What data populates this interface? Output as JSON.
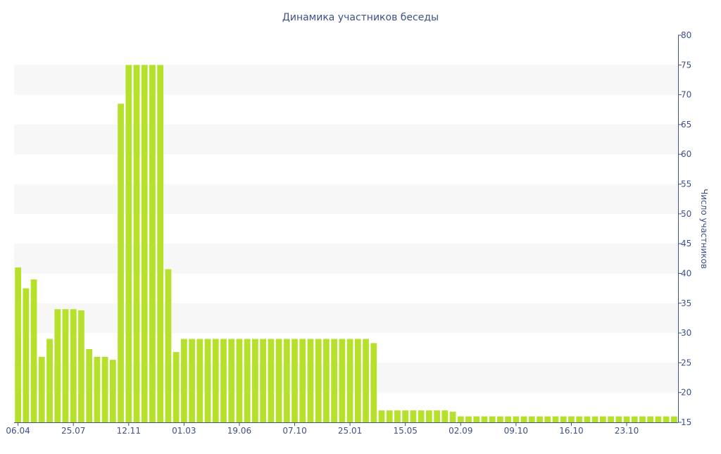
{
  "chart_data": {
    "type": "bar",
    "title": "Динамика участников беседы",
    "xlabel": "",
    "ylabel": "Число участников",
    "ylim": [
      15,
      80
    ],
    "y_ticks": [
      15,
      20,
      25,
      30,
      35,
      40,
      45,
      50,
      55,
      60,
      65,
      70,
      75,
      80
    ],
    "y_axis_position": "right",
    "grid": "alternating horizontal bands",
    "bar_color": "#b5e12b",
    "band_color": "#f7f7f7",
    "text_color": "#3e4f8a",
    "x_tick_labels": [
      "06.04",
      "25.07",
      "12.11",
      "01.03",
      "19.06",
      "07.10",
      "25.01",
      "15.05",
      "02.09",
      "09.10",
      "16.10",
      "23.10"
    ],
    "x_tick_bar_index": [
      0,
      7,
      14,
      21,
      28,
      35,
      42,
      49,
      56,
      63,
      70,
      77
    ],
    "values": [
      41,
      37.5,
      39,
      26,
      29,
      34,
      34,
      34,
      33.8,
      27.3,
      26,
      26,
      25.5,
      68.5,
      75,
      75,
      75,
      75,
      75,
      40.7,
      26.8,
      29,
      29,
      29,
      29,
      29,
      29,
      29,
      29,
      29,
      29,
      29,
      29,
      29,
      29,
      29,
      29,
      29,
      29,
      29,
      29,
      29,
      29,
      29,
      29,
      28.3,
      17,
      17,
      17,
      17,
      17,
      17,
      17,
      17,
      17,
      16.8,
      16,
      16,
      16,
      16,
      16,
      16,
      16,
      16,
      16,
      16,
      16,
      16,
      16,
      16,
      16,
      16,
      16,
      16,
      16,
      16,
      16,
      16,
      16,
      16,
      16,
      16,
      16,
      16
    ]
  }
}
